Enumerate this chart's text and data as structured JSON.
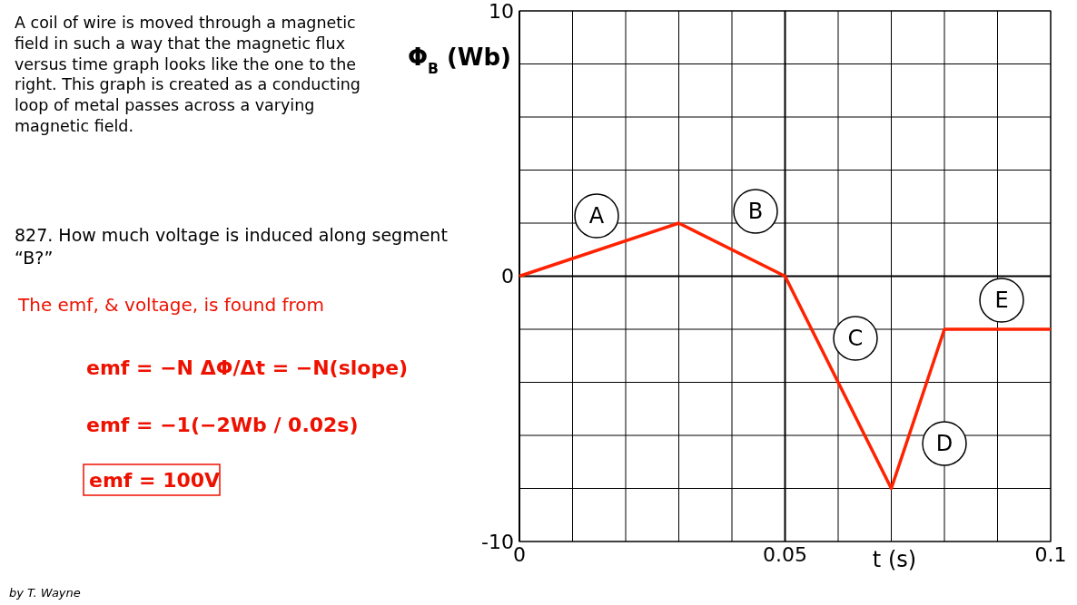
{
  "chart_data": {
    "type": "line",
    "xlabel": "t (s)",
    "ylabel": "Φ$_{B}$ (Wb)",
    "x": [
      0,
      0.03,
      0.05,
      0.07,
      0.08,
      0.1
    ],
    "series": [
      {
        "color": "#ff2200",
        "values": [
          0,
          2,
          0,
          -8,
          -2,
          -2
        ]
      }
    ],
    "xlim": [
      0,
      0.1
    ],
    "ylim": [
      -10,
      10
    ],
    "xticks": [
      0,
      {
        "value": 0.01,
        "label": null
      },
      {
        "value": 0.02,
        "label": null
      },
      {
        "value": 0.03,
        "label": null
      },
      {
        "value": 0.04,
        "label": null
      },
      0.05,
      {
        "value": 0.06,
        "label": null
      },
      {
        "value": 0.07,
        "label": null
      },
      {
        "value": 0.08,
        "label": null
      },
      {
        "value": 0.09,
        "label": null
      },
      0.1
    ],
    "yticks": [
      -10,
      {
        "value": -8,
        "label": null
      },
      {
        "value": -6,
        "label": null
      },
      {
        "value": -4,
        "label": null
      },
      {
        "value": -2,
        "label": null
      },
      0,
      {
        "value": 2,
        "label": null
      },
      {
        "value": 4,
        "label": null
      },
      {
        "value": 6,
        "label": null
      },
      {
        "value": 8,
        "label": null
      },
      10
    ],
    "grid": true,
    "marker": "none",
    "annotations": [
      "A  coil of wire is moved through a magnetic field in such a way that the magnetic flux versus time graph looks like the one to the right. This graph is created as a conducting loop of metal passes across a varying magnetic field.",
      "827. How much voltage is induced along segment “B?”",
      "The emf, & voltage, is found from",
      "emf = −N ΔΦ/Δt = −N(slope)",
      "emf = −1(−2Wb / 0.02s)",
      "emf = 100V",
      "by T. Wayne",
      "A",
      "B",
      "C",
      "D",
      "E"
    ]
  }
}
